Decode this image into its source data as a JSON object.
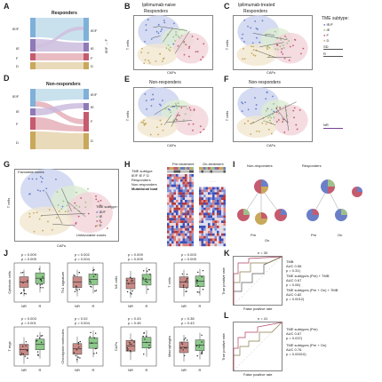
{
  "panels": {
    "A": {
      "letter": "A",
      "title": "Responders",
      "left": [
        "IE/F",
        "IE",
        "F",
        "D"
      ],
      "right": [
        "IE/F",
        "IE",
        "F",
        "D"
      ]
    },
    "D": {
      "letter": "D",
      "title": "Non-responders",
      "left": [
        "IE/F",
        "IE",
        "F",
        "D"
      ],
      "right": [
        "IE/F",
        "IE",
        "F",
        "D"
      ]
    },
    "B": {
      "letter": "B",
      "title": "Ipilimumab-naive",
      "subtitle": "Responders",
      "xlabel": "CAFs",
      "ylabel": "T cells"
    },
    "C": {
      "letter": "C",
      "title": "Ipilimumab-treated",
      "subtitle": "Responders",
      "xlabel": "CAFs",
      "ylabel": "T cells"
    },
    "E": {
      "letter": "E",
      "title": "Non-responders",
      "xlabel": "CAFs",
      "ylabel": "T cells"
    },
    "F": {
      "letter": "F",
      "title": "Non-responders",
      "xlabel": "CAFs",
      "ylabel": "T cells"
    },
    "G": {
      "letter": "G",
      "favorable": "Favorable zones",
      "unfavorable": "Unfavorable zones",
      "xlabel": "CAFs",
      "ylabel": "T cells",
      "legend_title": "TME subtype:"
    },
    "H": {
      "letter": "H",
      "pre": "Pre-treatment",
      "on": "On-treatment",
      "nd": "ND",
      "legend": [
        "TME subtype",
        "IE/F IE F D",
        "Responders",
        "Non-responders",
        "Mutational load"
      ]
    },
    "I": {
      "letter": "I",
      "nonresp": "Non-responders",
      "resp": "Responders",
      "pre": "Pre",
      "on": "On"
    },
    "J": {
      "letter": "J",
      "plots": [
        {
          "ylabel": "Cytotoxic cells",
          "p1": "p = 0.009",
          "p2": "p = 0.005"
        },
        {
          "ylabel": "Th1 signature",
          "p1": "p = 0.002",
          "p2": "p = 0.004"
        },
        {
          "ylabel": "NK cells",
          "p1": "p = 0.009",
          "p2": "p = 0.005"
        },
        {
          "ylabel": "T cells",
          "p1": "p = 0.003",
          "p2": "p = 0.005"
        },
        {
          "ylabel": "T regs",
          "p1": "p = 0.003",
          "p2": "p = 0.001"
        },
        {
          "ylabel": "Checkpoint molecules",
          "p1": "p = 0.02",
          "p2": "p = 0.004"
        },
        {
          "ylabel": "CAFs",
          "p1": "p = 0.43",
          "p2": "p = 0.45"
        },
        {
          "ylabel": "Macrophages",
          "p1": "p = 0.38",
          "p2": "p = 0.43"
        }
      ],
      "xcats": [
        "NR",
        "R"
      ]
    },
    "K": {
      "letter": "K",
      "n": "n = 30",
      "xlabel": "False positive rate",
      "ylabel": "True positive rate",
      "legend": [
        "TMB",
        "AUC 0.56",
        "p = 0.31)",
        "TME subtypes (Pre) + TMB",
        "AUC 0.67",
        "p = 0.06)",
        "TME subtypes (Pre + On) + TMB",
        "AUC 0.82",
        "p = 0.0012)"
      ]
    },
    "L": {
      "letter": "L",
      "n": "n = 41",
      "xlabel": "False positive rate",
      "ylabel": "True positive rate",
      "legend": [
        "TME subtypes (Pre)",
        "AUC 0.67",
        "p = 0.037)",
        "TME subtypes (Pre + On)",
        "AUC 0.76",
        "p = 0.00010)"
      ]
    }
  },
  "legend_tme": {
    "title": "TME subtype:",
    "items": [
      "IE/F",
      "IE",
      "F",
      "D"
    ],
    "sd": "SD",
    "r": "R",
    "nr": "NR"
  },
  "side_label": "IE/F → F",
  "colors": {
    "ief": "#6a7fc8",
    "ie": "#9fc08a",
    "f": "#c55b6e",
    "d": "#c8a85b",
    "box_red": "#c98a86",
    "box_green": "#8cc98a"
  }
}
